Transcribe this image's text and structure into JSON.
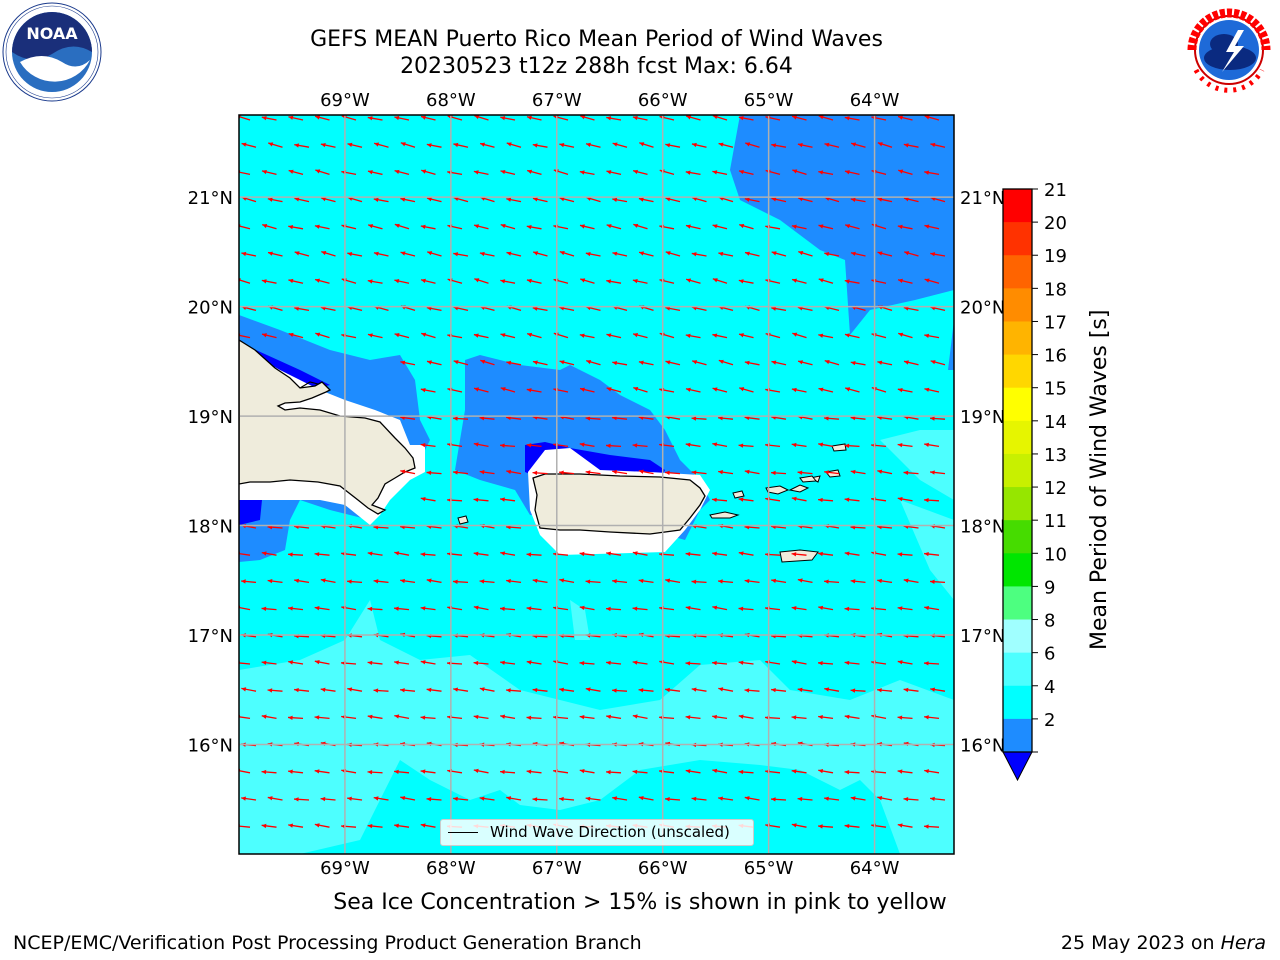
{
  "header": {
    "title_line1": "GEFS MEAN Puerto Rico Mean Period of Wind Waves",
    "title_line2": "20230523 t12z 288h fcst   Max: 6.64"
  },
  "map": {
    "lon_labels": [
      "69°W",
      "68°W",
      "67°W",
      "66°W",
      "65°W",
      "64°W"
    ],
    "lat_labels": [
      "21°N",
      "20°N",
      "19°N",
      "18°N",
      "17°N",
      "16°N"
    ],
    "lon_range": [
      -70.0,
      -63.25
    ],
    "lat_range": [
      15.0,
      21.75
    ],
    "wave_direction": "from east-southeast",
    "colors": {
      "ocean_4_6": "#00ffff",
      "ocean_6_8": "#4dffff",
      "ocean_2_4": "#1e8cff",
      "ocean_lt2": "#0000ff",
      "land": "#efecdc",
      "arrow": "#ff0000",
      "grid": "#b0b0b0"
    }
  },
  "legend": {
    "label": "Wind Wave Direction (unscaled)"
  },
  "colorbar": {
    "title": "Mean Period of Wind Waves [s]",
    "ticks": [
      "2",
      "4",
      "6",
      "8",
      "9",
      "10",
      "11",
      "12",
      "13",
      "14",
      "15",
      "16",
      "17",
      "18",
      "19",
      "20",
      "21"
    ],
    "colors": [
      "#1e8cff",
      "#00ffff",
      "#4dffff",
      "#a0ffff",
      "#4dff80",
      "#00e600",
      "#46dc00",
      "#96e600",
      "#c8f000",
      "#e6f500",
      "#ffff00",
      "#ffd700",
      "#ffb400",
      "#ff8c00",
      "#ff6400",
      "#ff3200",
      "#ff0000"
    ],
    "under_color": "#0000ff"
  },
  "notes": {
    "ice": "Sea Ice Concentration > 15% is shown in pink to yellow"
  },
  "footer": {
    "left": "NCEP/EMC/Verification Post Processing Product Generation Branch",
    "date": "25 May 2023 on ",
    "host": "Hera"
  }
}
